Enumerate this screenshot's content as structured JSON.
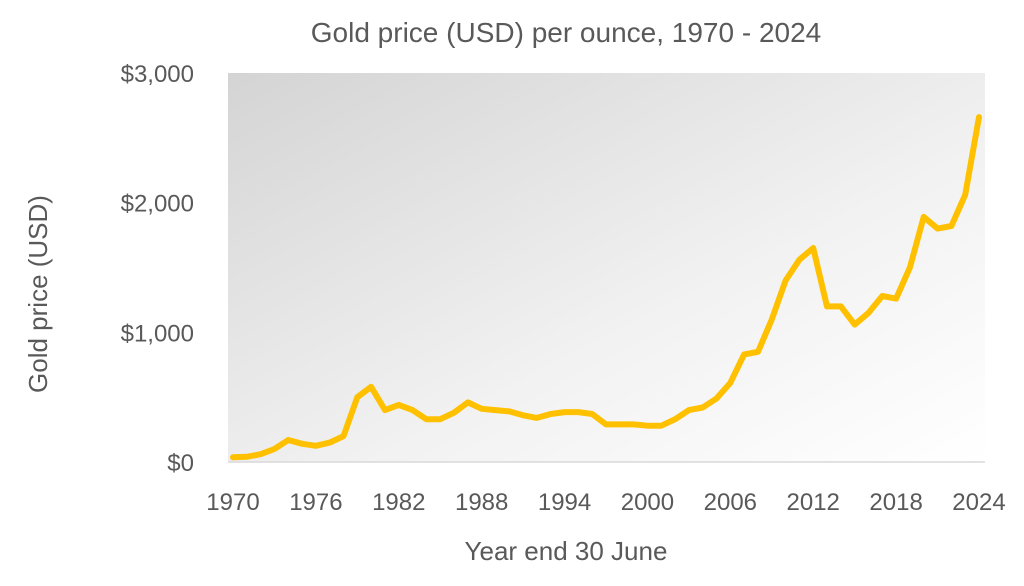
{
  "chart_data": {
    "type": "line",
    "title": "Gold price (USD) per ounce, 1970 - 2024",
    "xlabel": "Year end 30 June",
    "ylabel": "Gold price (USD)",
    "ylim": [
      0,
      3000
    ],
    "xlim": [
      1970,
      2024
    ],
    "y_ticks": [
      0,
      1000,
      2000,
      3000
    ],
    "y_tick_labels": [
      "$0",
      "$1,000",
      "$2,000",
      "$3,000"
    ],
    "x_ticks": [
      1970,
      1976,
      1982,
      1988,
      1994,
      2000,
      2006,
      2012,
      2018,
      2024
    ],
    "x_tick_labels": [
      "1970",
      "1976",
      "1982",
      "1988",
      "1994",
      "2000",
      "2006",
      "2012",
      "2018",
      "2024"
    ],
    "grid": false,
    "legend": "none",
    "line_color": "#FFC000",
    "series": [
      {
        "x": [
          1970,
          1971,
          1972,
          1973,
          1974,
          1975,
          1976,
          1977,
          1978,
          1979,
          1980,
          1981,
          1982,
          1983,
          1984,
          1985,
          1986,
          1987,
          1988,
          1989,
          1990,
          1991,
          1992,
          1993,
          1994,
          1995,
          1996,
          1997,
          1998,
          1999,
          2000,
          2001,
          2002,
          2003,
          2004,
          2005,
          2006,
          2007,
          2008,
          2009,
          2010,
          2011,
          2012,
          2013,
          2014,
          2015,
          2016,
          2017,
          2018,
          2019,
          2020,
          2021,
          2022,
          2023,
          2024
        ],
        "values": [
          36,
          40,
          60,
          100,
          170,
          140,
          125,
          150,
          200,
          500,
          580,
          400,
          440,
          400,
          330,
          330,
          380,
          460,
          410,
          400,
          390,
          360,
          340,
          370,
          385,
          385,
          370,
          290,
          290,
          290,
          280,
          280,
          330,
          400,
          420,
          490,
          610,
          830,
          850,
          1100,
          1400,
          1560,
          1650,
          1200,
          1200,
          1060,
          1150,
          1280,
          1260,
          1500,
          1890,
          1800,
          1820,
          2060,
          2660
        ]
      }
    ]
  }
}
